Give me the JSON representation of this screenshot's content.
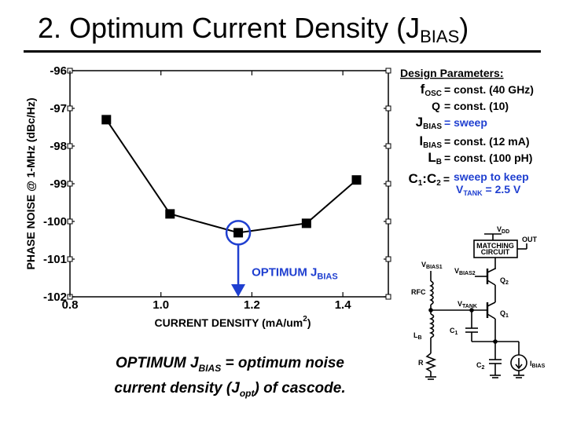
{
  "title": {
    "main": "2. Optimum Current Density (J",
    "sub": "BIAS",
    "close": ")"
  },
  "chart_data": {
    "type": "line",
    "xlabel": "CURRENT DENSITY (mA/um",
    "xlabel_sup": "2",
    "xlabel_close": ")",
    "ylabel": "PHASE NOISE @ 1-MHz (dBc/Hz)",
    "xlim": [
      0.8,
      1.5
    ],
    "ylim": [
      -102,
      -96
    ],
    "xticks": [
      0.8,
      1.0,
      1.2,
      1.4
    ],
    "xtick_labels": [
      "0.8",
      "1.0",
      "1.2",
      "1.4"
    ],
    "yticks": [
      -96,
      -97,
      -98,
      -99,
      -100,
      -101,
      -102
    ],
    "ytick_labels": [
      "-96",
      "-97",
      "-98",
      "-99",
      "-100",
      "-101",
      "-102"
    ],
    "series": [
      {
        "x": [
          0.88,
          1.02,
          1.17,
          1.32,
          1.43
        ],
        "y": [
          -97.3,
          -99.8,
          -100.3,
          -100.05,
          -98.9
        ]
      }
    ],
    "optimum": {
      "x": 1.17,
      "y": -100.3,
      "label_main": "OPTIMUM J",
      "label_sub": "BIAS",
      "color": "#1f3fd0"
    }
  },
  "parameters": {
    "heading": "Design Parameters:",
    "rows": [
      {
        "name": "f",
        "sub": "OSC",
        "value": "= const. (40 GHz)",
        "color": "#000000"
      },
      {
        "name": "Q",
        "sub": "",
        "value": "= const. (10)",
        "color": "#000000"
      },
      {
        "name": "J",
        "sub": "BIAS",
        "value": "= sweep",
        "color": "#1f3fd0"
      },
      {
        "name": "I",
        "sub": "BIAS",
        "value": "= const. (12 mA)",
        "color": "#000000"
      },
      {
        "name": "L",
        "sub": "B",
        "value": "= const. (100 pH)",
        "color": "#000000"
      },
      {
        "name": "C",
        "sub": "1",
        "value": "",
        "color": "#000000"
      }
    ],
    "c_ratio": {
      "c1": "C",
      "c1_sub": "1",
      "c2": "C",
      "c2_sub": "2",
      "sep": ":",
      "eq": "=",
      "value": "sweep to keep",
      "value2": "V",
      "value2_sub": "TANK",
      "value2_rest": " = 2.5 V",
      "color": "#1f3fd0"
    }
  },
  "circuit": {
    "vdd": "V",
    "vdd_sub": "DD",
    "out": "OUT",
    "matching1": "MATCHING",
    "matching2": "CIRCUIT",
    "vbias1": "V",
    "vbias1_sub": "BIAS1",
    "vbias2": "V",
    "vbias2_sub": "BIAS2",
    "q2": "Q",
    "q2_sub": "2",
    "rfc": "RFC",
    "vtank": "V",
    "vtank_sub": "TANK",
    "q1": "Q",
    "q1_sub": "1",
    "c1": "C",
    "c1_sub": "1",
    "lb": "L",
    "lb_sub": "B",
    "r": "R",
    "c2": "C",
    "c2_sub": "2",
    "ibias": "I",
    "ibias_sub": "BIAS"
  },
  "caption": {
    "l1_a": "OPTIMUM J",
    "l1_sub": "BIAS",
    "l1_b": " = optimum noise",
    "l2_a": "current density (J",
    "l2_sub": "opt",
    "l2_b": ") of cascode."
  },
  "colors": {
    "accent": "#1f3fd0",
    "line": "#000000"
  }
}
